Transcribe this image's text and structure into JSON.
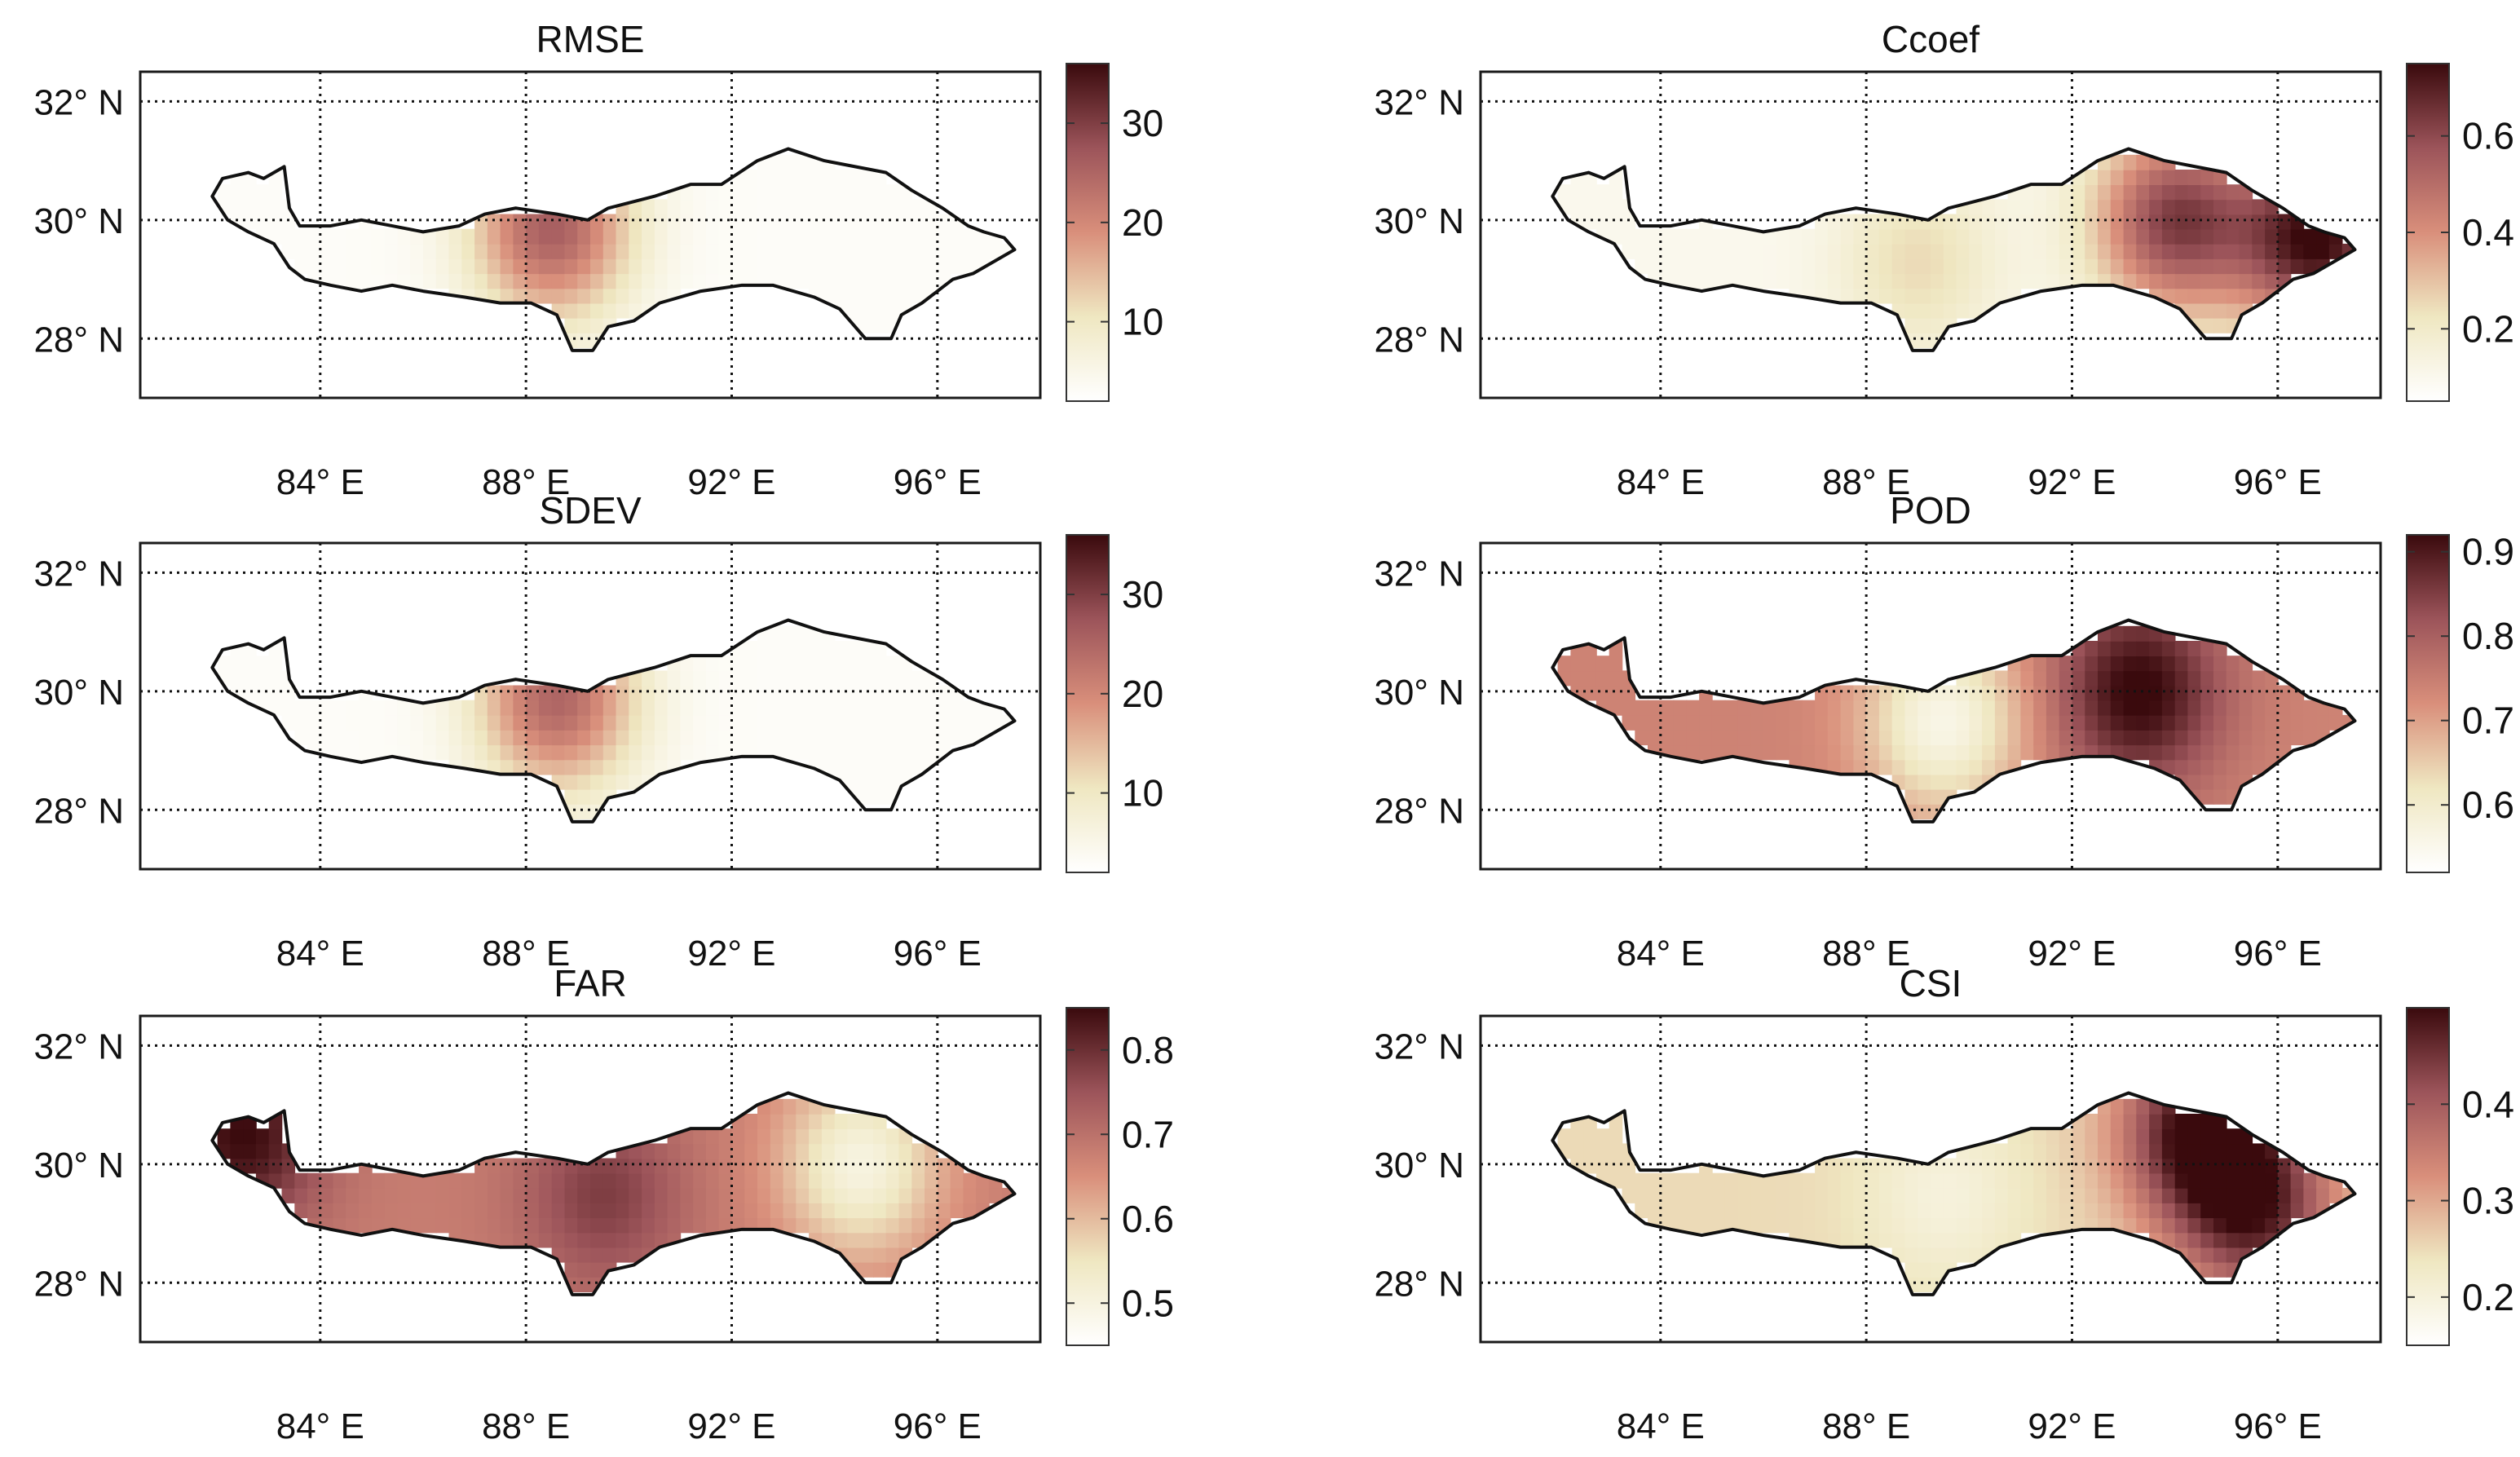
{
  "colormap": [
    "#ffffff",
    "#efe7c1",
    "#d98f7b",
    "#9c545a",
    "#3a0a0d"
  ],
  "lat_ticks": [
    32,
    30,
    28
  ],
  "lon_ticks": [
    84,
    88,
    92,
    96
  ],
  "lat_fmt": "° N",
  "lon_fmt": "° E",
  "outline_color": "#111111",
  "chart_data": [
    {
      "type": "heatmap",
      "name": "RMSE",
      "title": "RMSE",
      "xlim": [
        80.5,
        98
      ],
      "ylim": [
        27,
        32.5
      ],
      "colorbar": {
        "range": [
          2,
          36
        ],
        "ticks": [
          10,
          20,
          30
        ]
      },
      "background_value": 3,
      "hotspots": [
        {
          "lon": 88.5,
          "lat": 29.9,
          "value": 26
        }
      ]
    },
    {
      "type": "heatmap",
      "name": "Ccoef",
      "title": "Ccoef",
      "xlim": [
        80.5,
        98
      ],
      "ylim": [
        27,
        32.5
      ],
      "colorbar": {
        "range": [
          0.05,
          0.75
        ],
        "ticks": [
          0.2,
          0.4,
          0.6
        ]
      },
      "background_value": 0.1,
      "hotspots": [
        {
          "lon": 94,
          "lat": 30,
          "value": 0.62
        },
        {
          "lon": 96.8,
          "lat": 29.7,
          "value": 0.75
        },
        {
          "lon": 89,
          "lat": 29.3,
          "value": 0.25
        }
      ]
    },
    {
      "type": "heatmap",
      "name": "SDEV",
      "title": "SDEV",
      "xlim": [
        80.5,
        98
      ],
      "ylim": [
        27,
        32.5
      ],
      "colorbar": {
        "range": [
          2,
          36
        ],
        "ticks": [
          10,
          20,
          30
        ]
      },
      "background_value": 3,
      "hotspots": [
        {
          "lon": 88.6,
          "lat": 29.9,
          "value": 25
        }
      ]
    },
    {
      "type": "heatmap",
      "name": "POD",
      "title": "POD",
      "xlim": [
        80.5,
        98
      ],
      "ylim": [
        27,
        32.5
      ],
      "colorbar": {
        "range": [
          0.52,
          0.92
        ],
        "ticks": [
          0.6,
          0.7,
          0.8,
          0.9
        ]
      },
      "background_value": 0.74,
      "hotspots": [
        {
          "lon": 93.3,
          "lat": 30,
          "value": 0.93
        },
        {
          "lon": 89.5,
          "lat": 29.5,
          "value": 0.56
        }
      ]
    },
    {
      "type": "heatmap",
      "name": "FAR",
      "title": "FAR",
      "xlim": [
        80.5,
        98
      ],
      "ylim": [
        27,
        32.5
      ],
      "colorbar": {
        "range": [
          0.45,
          0.85
        ],
        "ticks": [
          0.5,
          0.6,
          0.7,
          0.8
        ]
      },
      "background_value": 0.68,
      "hotspots": [
        {
          "lon": 82.5,
          "lat": 30.5,
          "value": 0.85
        },
        {
          "lon": 89.5,
          "lat": 29.5,
          "value": 0.78
        },
        {
          "lon": 94.5,
          "lat": 30,
          "value": 0.5
        }
      ]
    },
    {
      "type": "heatmap",
      "name": "CSI",
      "title": "CSI",
      "xlim": [
        80.5,
        98
      ],
      "ylim": [
        27,
        32.5
      ],
      "colorbar": {
        "range": [
          0.15,
          0.5
        ],
        "ticks": [
          0.2,
          0.3,
          0.4
        ]
      },
      "background_value": 0.25,
      "hotspots": [
        {
          "lon": 94.5,
          "lat": 30.6,
          "value": 0.5
        },
        {
          "lon": 95.6,
          "lat": 29.2,
          "value": 0.45
        },
        {
          "lon": 89.5,
          "lat": 29.5,
          "value": 0.2
        }
      ]
    }
  ]
}
